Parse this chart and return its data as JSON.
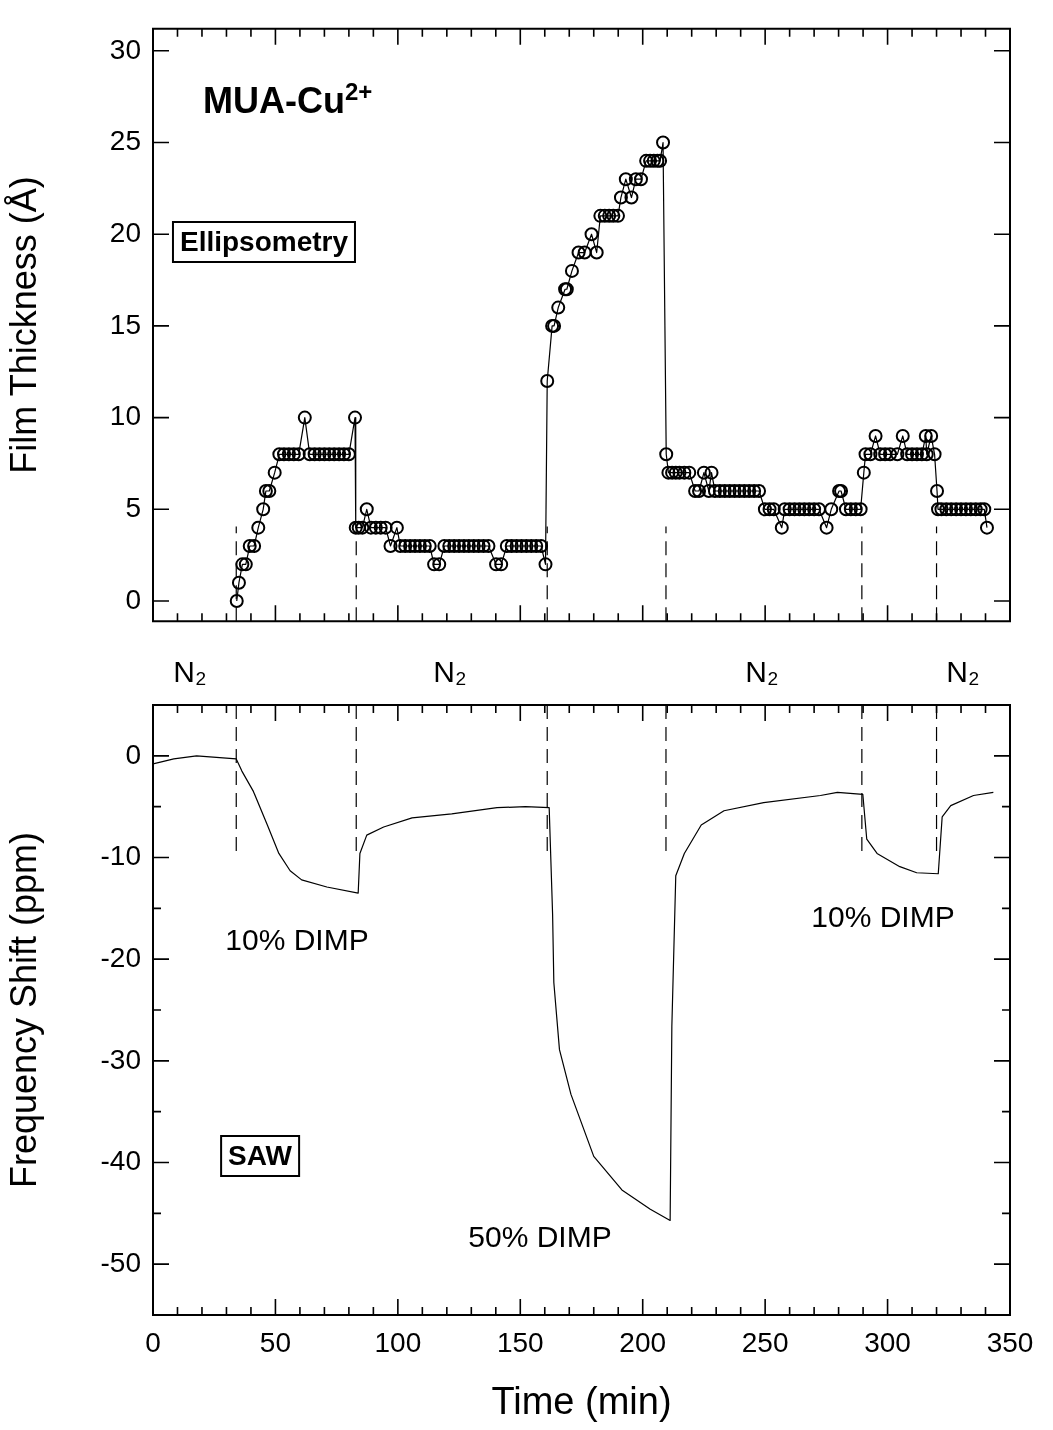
{
  "chart_data": [
    {
      "type": "line",
      "title": "MUA-Cu$^{2+}$",
      "ylabel": "Film Thickness (Å)",
      "annotations": [
        "Ellipsometry"
      ],
      "marker": "circle",
      "line_style": "solid",
      "tick_labels": "y",
      "xlim": [
        0,
        350
      ],
      "xticks": [
        0,
        {
          "value": 10,
          "label": null
        },
        {
          "value": 20,
          "label": null
        },
        {
          "value": 30,
          "label": null
        },
        {
          "value": 40,
          "label": null
        },
        50,
        {
          "value": 60,
          "label": null
        },
        {
          "value": 70,
          "label": null
        },
        {
          "value": 80,
          "label": null
        },
        {
          "value": 90,
          "label": null
        },
        100,
        {
          "value": 110,
          "label": null
        },
        {
          "value": 120,
          "label": null
        },
        {
          "value": 130,
          "label": null
        },
        {
          "value": 140,
          "label": null
        },
        150,
        {
          "value": 160,
          "label": null
        },
        {
          "value": 170,
          "label": null
        },
        {
          "value": 180,
          "label": null
        },
        {
          "value": 190,
          "label": null
        },
        200,
        {
          "value": 210,
          "label": null
        },
        {
          "value": 220,
          "label": null
        },
        {
          "value": 230,
          "label": null
        },
        {
          "value": 240,
          "label": null
        },
        250,
        {
          "value": 260,
          "label": null
        },
        {
          "value": 270,
          "label": null
        },
        {
          "value": 280,
          "label": null
        },
        {
          "value": 290,
          "label": null
        },
        300,
        {
          "value": 310,
          "label": null
        },
        {
          "value": 320,
          "label": null
        },
        {
          "value": 330,
          "label": null
        },
        {
          "value": 340,
          "label": null
        },
        350
      ],
      "ylim": [
        -1.1,
        31.2
      ],
      "yticks": [
        0,
        5,
        10,
        15,
        20,
        25,
        30
      ],
      "ref_lines": [
        {
          "axis": "x",
          "value": 34,
          "line_style": "dashed"
        },
        {
          "axis": "x",
          "value": 83,
          "line_style": "dashed"
        },
        {
          "axis": "x",
          "value": 161,
          "line_style": "dashed"
        },
        {
          "axis": "x",
          "value": 209.5,
          "line_style": "dashed"
        },
        {
          "axis": "x",
          "value": 289.5,
          "line_style": "dashed"
        },
        {
          "axis": "x",
          "value": 320,
          "line_style": "dashed"
        }
      ],
      "series": [
        {
          "color": "#000000",
          "x": [
            34.2,
            35.1,
            36.5,
            37.9,
            39.5,
            41.3,
            43,
            45,
            46.1,
            47.5,
            49.7,
            51.6,
            53.5,
            55.5,
            57.5,
            59.5,
            62,
            64,
            66,
            68,
            70,
            72,
            74,
            76,
            78,
            80,
            82.5,
            82.8,
            84,
            85.5,
            87.3,
            89,
            91,
            93,
            95,
            97,
            99.6,
            101,
            103,
            105,
            107,
            109,
            111,
            113,
            114.8,
            116.9,
            119,
            121,
            123,
            125,
            127,
            129,
            131,
            133,
            135,
            137,
            140.1,
            142.2,
            144.5,
            146.5,
            148.5,
            150.5,
            152.5,
            154.5,
            156.5,
            158.5,
            160.3,
            161,
            163,
            163.8,
            165.5,
            168.3,
            169,
            171.1,
            173.8,
            176.3,
            179.1,
            181.2,
            182.7,
            184.5,
            186.3,
            188,
            189.9,
            191.1,
            193.1,
            195.4,
            197.2,
            199.3,
            201.4,
            203,
            204.5,
            206,
            207.1,
            208.3,
            209.6,
            210.5,
            212,
            213.5,
            215,
            217,
            219,
            221.4,
            223,
            225,
            227,
            228.1,
            229.5,
            231.5,
            233.5,
            235.5,
            237.5,
            239.5,
            241.5,
            243.5,
            245.5,
            247.5,
            249.9,
            251.8,
            253.5,
            256.8,
            258,
            260,
            262,
            264,
            266,
            268,
            270,
            272,
            275.1,
            277,
            280.2,
            281,
            283,
            285,
            287,
            289,
            290.3,
            291,
            293,
            295.1,
            297,
            299,
            301,
            304,
            306.2,
            308,
            310,
            312,
            314,
            315.6,
            316,
            317.8,
            319.2,
            320.2,
            320.6,
            322,
            324,
            326,
            328,
            330,
            332,
            334,
            336,
            338,
            339.5,
            340.6
          ],
          "values": [
            0,
            1,
            2,
            2,
            3,
            3,
            4,
            5,
            6,
            6,
            7,
            8,
            8,
            8,
            8,
            8,
            10,
            8,
            8,
            8,
            8,
            8,
            8,
            8,
            8,
            8,
            10,
            4,
            4,
            4,
            5,
            4,
            4,
            4,
            4,
            3,
            4,
            3,
            3,
            3,
            3,
            3,
            3,
            3,
            2,
            2,
            3,
            3,
            3,
            3,
            3,
            3,
            3,
            3,
            3,
            3,
            2,
            2,
            3,
            3,
            3,
            3,
            3,
            3,
            3,
            3,
            2,
            12,
            15,
            15,
            16,
            17,
            17,
            18,
            19,
            19,
            20,
            19,
            21,
            21,
            21,
            21,
            21,
            22,
            23,
            22,
            23,
            23,
            24,
            24,
            24,
            24,
            24,
            25,
            8,
            7,
            7,
            7,
            7,
            7,
            7,
            6,
            6,
            7,
            6,
            7,
            6,
            6,
            6,
            6,
            6,
            6,
            6,
            6,
            6,
            6,
            5,
            5,
            5,
            4,
            5,
            5,
            5,
            5,
            5,
            5,
            5,
            5,
            4,
            5,
            6,
            6,
            5,
            5,
            5,
            5,
            7,
            8,
            8,
            9,
            8,
            8,
            8,
            8,
            9,
            8,
            8,
            8,
            8,
            9,
            8,
            9,
            8,
            6,
            5,
            5,
            5,
            5,
            5,
            5,
            5,
            5,
            5,
            5,
            5,
            4
          ]
        }
      ]
    },
    {
      "type": "line",
      "xlabel": "Time (min)",
      "ylabel": "Frequency Shift (ppm)",
      "marker": "none",
      "line_style": "solid",
      "annotations": [
        "SAW",
        "N₂",
        "N₂",
        "N₂",
        "N₂",
        "10% DIMP",
        "50% DIMP",
        "10% DIMP"
      ],
      "xlim": [
        0,
        350
      ],
      "xticks": [
        0,
        {
          "value": 10,
          "label": null
        },
        {
          "value": 20,
          "label": null
        },
        {
          "value": 30,
          "label": null
        },
        {
          "value": 40,
          "label": null
        },
        50,
        {
          "value": 60,
          "label": null
        },
        {
          "value": 70,
          "label": null
        },
        {
          "value": 80,
          "label": null
        },
        {
          "value": 90,
          "label": null
        },
        100,
        {
          "value": 110,
          "label": null
        },
        {
          "value": 120,
          "label": null
        },
        {
          "value": 130,
          "label": null
        },
        {
          "value": 140,
          "label": null
        },
        150,
        {
          "value": 160,
          "label": null
        },
        {
          "value": 170,
          "label": null
        },
        {
          "value": 180,
          "label": null
        },
        {
          "value": 190,
          "label": null
        },
        200,
        {
          "value": 210,
          "label": null
        },
        {
          "value": 220,
          "label": null
        },
        {
          "value": 230,
          "label": null
        },
        {
          "value": 240,
          "label": null
        },
        250,
        {
          "value": 260,
          "label": null
        },
        {
          "value": 270,
          "label": null
        },
        {
          "value": 280,
          "label": null
        },
        {
          "value": 290,
          "label": null
        },
        300,
        {
          "value": 310,
          "label": null
        },
        {
          "value": 320,
          "label": null
        },
        {
          "value": 330,
          "label": null
        },
        {
          "value": 340,
          "label": null
        },
        350
      ],
      "ylim": [
        -55,
        5
      ],
      "yticks": [
        {
          "value": -55,
          "label": null
        },
        -50,
        {
          "value": -45,
          "label": null
        },
        -40,
        {
          "value": -35,
          "label": null
        },
        -30,
        {
          "value": -25,
          "label": null
        },
        -20,
        {
          "value": -15,
          "label": null
        },
        -10,
        {
          "value": -5,
          "label": null
        },
        0,
        {
          "value": 5,
          "label": null
        }
      ],
      "ref_lines": [
        {
          "axis": "x",
          "value": 34,
          "line_style": "dashed"
        },
        {
          "axis": "x",
          "value": 83,
          "line_style": "dashed"
        },
        {
          "axis": "x",
          "value": 161,
          "line_style": "dashed"
        },
        {
          "axis": "x",
          "value": 209.5,
          "line_style": "dashed"
        },
        {
          "axis": "x",
          "value": 289.5,
          "line_style": "dashed"
        },
        {
          "axis": "x",
          "value": 320,
          "line_style": "dashed"
        }
      ],
      "series": [
        {
          "color": "#000000",
          "x": [
            0,
            8.5,
            17.8,
            34,
            36.3,
            41,
            46.7,
            51.4,
            56,
            60.7,
            71,
            83.8,
            84.5,
            87.3,
            94.2,
            105.8,
            122,
            140.5,
            152.1,
            161.8,
            163.2,
            163.7,
            166,
            170.7,
            180,
            191.5,
            203.1,
            211.2,
            211.9,
            213.5,
            217,
            223.9,
            233.2,
            249.4,
            272.6,
            279.5,
            289.9,
            291.5,
            295.7,
            305,
            311.9,
            320.7,
            322.3,
            325.8,
            335.1,
            343.2
          ],
          "values": [
            -0.8,
            -0.3,
            0,
            -0.3,
            -1.5,
            -3.5,
            -6.8,
            -9.6,
            -11.3,
            -12.2,
            -12.9,
            -13.5,
            -9.6,
            -7.8,
            -7,
            -6.1,
            -5.7,
            -5.1,
            -5,
            -5.1,
            -15.6,
            -22.3,
            -28.9,
            -33.3,
            -39.4,
            -42.7,
            -44.6,
            -45.7,
            -26.6,
            -11.8,
            -9.6,
            -6.8,
            -5.4,
            -4.6,
            -3.9,
            -3.6,
            -3.8,
            -8.2,
            -9.6,
            -10.9,
            -11.5,
            -11.6,
            -6,
            -4.9,
            -3.9,
            -3.6
          ]
        }
      ]
    }
  ]
}
